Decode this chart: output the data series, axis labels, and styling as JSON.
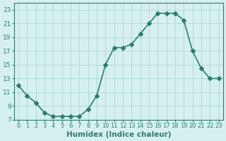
{
  "x": [
    0,
    1,
    2,
    3,
    4,
    5,
    6,
    7,
    8,
    9,
    10,
    11,
    12,
    13,
    14,
    15,
    16,
    17,
    18,
    19,
    20,
    21,
    22,
    23
  ],
  "y": [
    12.0,
    10.5,
    9.5,
    8.0,
    7.5,
    7.5,
    7.5,
    7.5,
    8.5,
    10.5,
    15.0,
    17.5,
    17.5,
    18.0,
    19.5,
    21.0,
    22.5,
    22.5,
    22.5,
    21.5,
    17.0,
    14.5,
    13.0,
    13.0
  ],
  "line_color": "#2e7d6e",
  "marker": "D",
  "marker_size": 3,
  "bg_color": "#d6f0f0",
  "grid_color": "#b0d8d8",
  "xlabel": "Humidex (Indice chaleur)",
  "xlim": [
    -0.5,
    23.5
  ],
  "ylim": [
    7,
    24
  ],
  "yticks": [
    7,
    9,
    11,
    13,
    15,
    17,
    19,
    21,
    23
  ],
  "xticks": [
    0,
    1,
    2,
    3,
    4,
    5,
    6,
    7,
    8,
    9,
    10,
    11,
    12,
    13,
    14,
    15,
    16,
    17,
    18,
    19,
    20,
    21,
    22,
    23
  ],
  "xlabel_fontsize": 7.5,
  "tick_fontsize": 6.5,
  "line_width": 1.2
}
